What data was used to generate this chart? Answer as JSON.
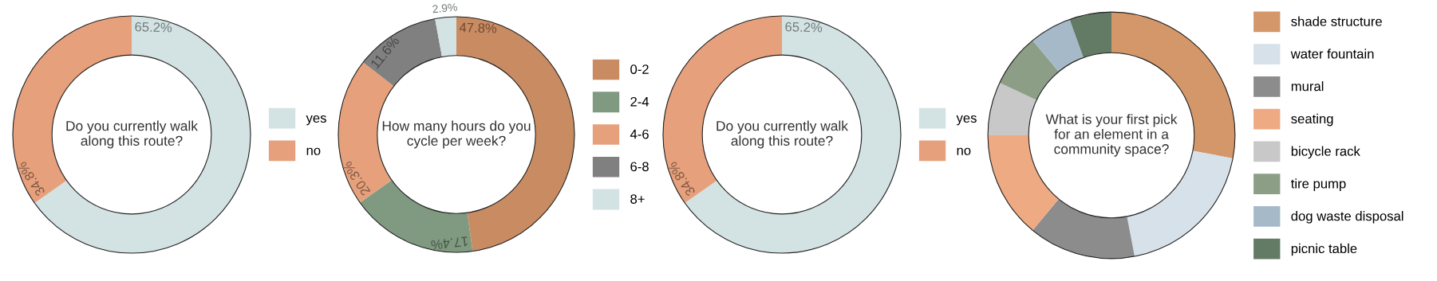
{
  "chart_data": [
    {
      "type": "donut",
      "title": "Do you currently walk\nalong this route?",
      "categories": [
        "yes",
        "no"
      ],
      "values": [
        65.2,
        34.8
      ],
      "colors": [
        "#d3e2e3",
        "#e6a07c"
      ],
      "value_labels": [
        "65.2%",
        "34.8%"
      ],
      "legend": "right"
    },
    {
      "type": "donut",
      "title": "How many hours do you\ncycle per week?",
      "categories": [
        "0-2",
        "2-4",
        "4-6",
        "6-8",
        "8+"
      ],
      "values": [
        47.8,
        17.4,
        20.3,
        11.6,
        2.9
      ],
      "colors": [
        "#c98b62",
        "#7f9a80",
        "#e6a07c",
        "#808080",
        "#d3e2e3"
      ],
      "value_labels": [
        "47.8%",
        "17.4%",
        "20.3%",
        "11.6%",
        "2.9%"
      ],
      "legend": "right"
    },
    {
      "type": "donut",
      "title": "Do you currently walk\nalong this route?",
      "categories": [
        "yes",
        "no"
      ],
      "values": [
        65.2,
        34.8
      ],
      "colors": [
        "#d3e2e3",
        "#e6a07c"
      ],
      "value_labels": [
        "65.2%",
        "34.8%"
      ],
      "legend": "right"
    },
    {
      "type": "donut",
      "title": "What is your first pick\nfor an element in a\ncommunity space?",
      "categories": [
        "shade structure",
        "water fountain",
        "mural",
        "seating",
        "bicycle rack",
        "tire pump",
        "dog waste disposal",
        "picnic table"
      ],
      "values": [
        28,
        19,
        14,
        14,
        7,
        7,
        5.5,
        5.5
      ],
      "colors": [
        "#d4976a",
        "#d6e1ea",
        "#8c8c8c",
        "#eeaa82",
        "#c8c8c8",
        "#8c9f86",
        "#a6b9c8",
        "#637a64"
      ],
      "legend": "right"
    }
  ]
}
